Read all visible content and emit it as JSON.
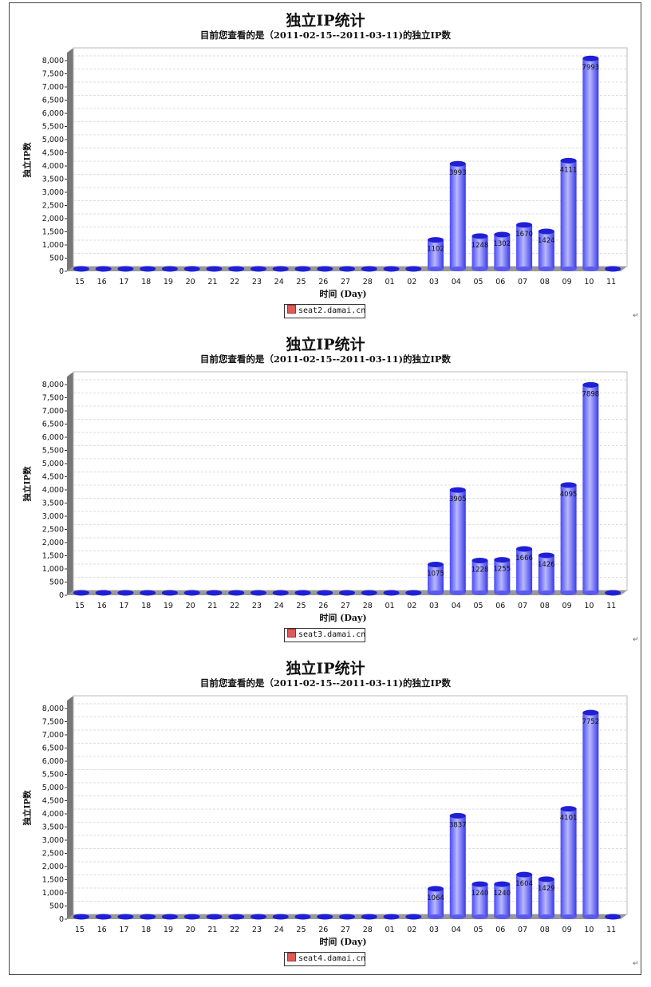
{
  "chart_data": [
    {
      "type": "bar",
      "title": "独立IP统计",
      "subtitle": "目前您查看的是（2011-02-15--2011-03-11)的独立IP数",
      "xlabel": "时间 (Day)",
      "ylabel": "独立IP数",
      "ylim": [
        0,
        8000
      ],
      "yticks": [
        "0",
        "500",
        "1,000",
        "1,500",
        "2,000",
        "2,500",
        "3,000",
        "3,500",
        "4,000",
        "4,500",
        "5,000",
        "5,500",
        "6,000",
        "6,500",
        "7,000",
        "7,500",
        "8,000"
      ],
      "categories": [
        "15",
        "16",
        "17",
        "18",
        "19",
        "20",
        "21",
        "22",
        "23",
        "24",
        "25",
        "26",
        "27",
        "28",
        "01",
        "02",
        "03",
        "04",
        "05",
        "06",
        "07",
        "08",
        "09",
        "10",
        "11"
      ],
      "series": [
        {
          "name": "seat2.damai.cn",
          "values": [
            0,
            0,
            0,
            0,
            0,
            0,
            0,
            0,
            0,
            0,
            0,
            0,
            0,
            0,
            0,
            0,
            1102,
            3993,
            1248,
            1302,
            1670,
            1424,
            4111,
            7993,
            0
          ],
          "labels": [
            "",
            "",
            "",
            "",
            "",
            "",
            "",
            "",
            "",
            "",
            "",
            "",
            "",
            "",
            "",
            "",
            "1102",
            "3993",
            "1248",
            "1302",
            "1670",
            "1424",
            "4111",
            "7993",
            ""
          ]
        }
      ],
      "legend": "bottom-center",
      "grid": true
    },
    {
      "type": "bar",
      "title": "独立IP统计",
      "subtitle": "目前您查看的是（2011-02-15--2011-03-11)的独立IP数",
      "xlabel": "时间 (Day)",
      "ylabel": "独立IP数",
      "ylim": [
        0,
        8000
      ],
      "yticks": [
        "0",
        "500",
        "1,000",
        "1,500",
        "2,000",
        "2,500",
        "3,000",
        "3,500",
        "4,000",
        "4,500",
        "5,000",
        "5,500",
        "6,000",
        "6,500",
        "7,000",
        "7,500",
        "8,000"
      ],
      "categories": [
        "15",
        "16",
        "17",
        "18",
        "19",
        "20",
        "21",
        "22",
        "23",
        "24",
        "25",
        "26",
        "27",
        "28",
        "01",
        "02",
        "03",
        "04",
        "05",
        "06",
        "07",
        "08",
        "09",
        "10",
        "11"
      ],
      "series": [
        {
          "name": "seat3.damai.cn",
          "values": [
            0,
            0,
            0,
            0,
            0,
            0,
            0,
            0,
            0,
            0,
            0,
            0,
            0,
            0,
            0,
            0,
            1075,
            3905,
            1228,
            1255,
            1666,
            1426,
            4095,
            7898,
            0
          ],
          "labels": [
            "",
            "",
            "",
            "",
            "",
            "",
            "",
            "",
            "",
            "",
            "",
            "",
            "",
            "",
            "",
            "",
            "1075",
            "3905",
            "1228",
            "1255",
            "1666",
            "1426",
            "4095",
            "7898",
            ""
          ]
        }
      ],
      "legend": "bottom-center",
      "grid": true
    },
    {
      "type": "bar",
      "title": "独立IP统计",
      "subtitle": "目前您查看的是（2011-02-15--2011-03-11)的独立IP数",
      "xlabel": "时间 (Day)",
      "ylabel": "独立IP数",
      "ylim": [
        0,
        8000
      ],
      "yticks": [
        "0",
        "500",
        "1,000",
        "1,500",
        "2,000",
        "2,500",
        "3,000",
        "3,500",
        "4,000",
        "4,500",
        "5,000",
        "5,500",
        "6,000",
        "6,500",
        "7,000",
        "7,500",
        "8,000"
      ],
      "categories": [
        "15",
        "16",
        "17",
        "18",
        "19",
        "20",
        "21",
        "22",
        "23",
        "24",
        "25",
        "26",
        "27",
        "28",
        "01",
        "02",
        "03",
        "04",
        "05",
        "06",
        "07",
        "08",
        "09",
        "10",
        "11"
      ],
      "series": [
        {
          "name": "seat4.damai.cn",
          "values": [
            0,
            0,
            0,
            0,
            0,
            0,
            0,
            0,
            0,
            0,
            0,
            0,
            0,
            0,
            0,
            0,
            1064,
            3837,
            1240,
            1240,
            1604,
            1429,
            4101,
            7752,
            0
          ],
          "labels": [
            "",
            "",
            "",
            "",
            "",
            "",
            "",
            "",
            "",
            "",
            "",
            "",
            "",
            "",
            "",
            "",
            "1064",
            "3837",
            "1240",
            "1240",
            "1604",
            "1429",
            "4101",
            "7752",
            ""
          ]
        }
      ],
      "legend": "bottom-center",
      "grid": true
    }
  ],
  "colors": {
    "bar_top": "#1f1fd6",
    "bar_body": "#6b6bff",
    "legend_swatch": "#e05a5a",
    "grid": "#dddddd",
    "floor": "#999999"
  },
  "paragraph_mark": "↵"
}
